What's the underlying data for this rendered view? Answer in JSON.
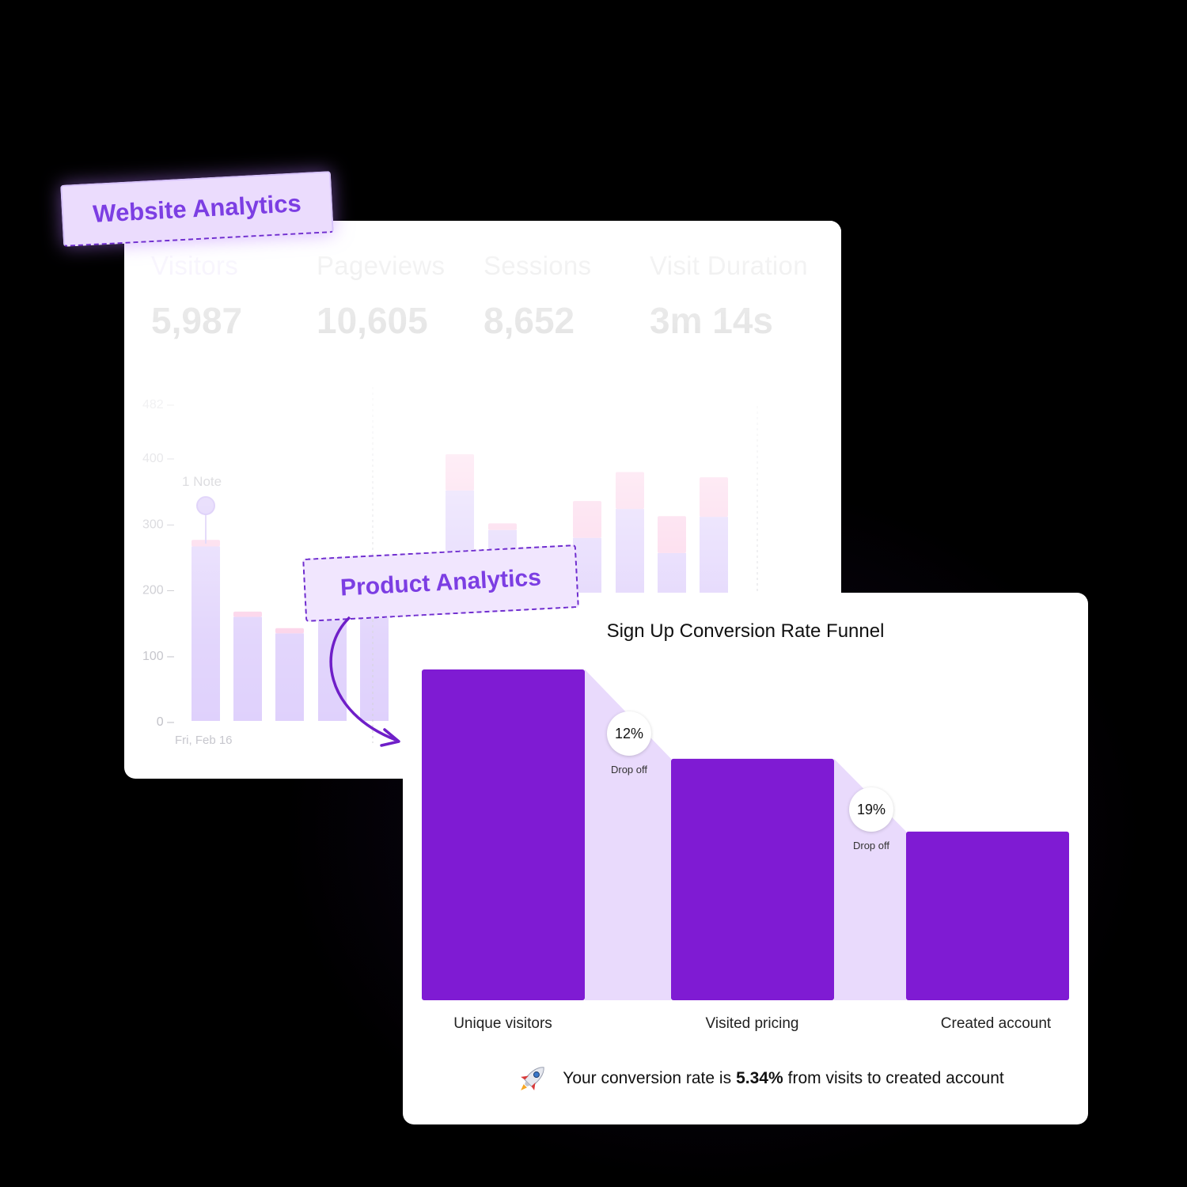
{
  "website_analytics": {
    "tag_label": "Website Analytics",
    "metrics": [
      {
        "label": "Visitors",
        "value": "5,987"
      },
      {
        "label": "Pageviews",
        "value": "10,605"
      },
      {
        "label": "Sessions",
        "value": "8,652"
      },
      {
        "label": "Visit Duration",
        "value": "3m 14s"
      }
    ],
    "active_metric": "Visitors",
    "chart_data": {
      "type": "bar",
      "y_ticks": [
        "0",
        "100",
        "200",
        "300",
        "400",
        "482"
      ],
      "ylim": [
        0,
        482
      ],
      "x_tick_label": "Fri, Feb 16",
      "note_label": "1 Note",
      "series": [
        {
          "values": [
            265,
            158,
            133,
            170,
            170,
            0,
            350,
            290,
            0,
            278,
            322,
            255,
            310
          ]
        },
        {
          "values": [
            10,
            8,
            8,
            0,
            0,
            0,
            55,
            10,
            0,
            56,
            56,
            56,
            60
          ]
        }
      ],
      "colors": {
        "primary": "#d9c8fb",
        "secondary": "#fbc7e3"
      }
    }
  },
  "product_analytics": {
    "tag_label": "Product Analytics"
  },
  "funnel": {
    "title": "Sign Up Conversion Rate Funnel",
    "chart_data": {
      "type": "bar",
      "categories": [
        "Unique visitors",
        "Visited pricing",
        "Created account"
      ],
      "values": [
        100,
        73,
        51
      ],
      "drop_offs": [
        {
          "value": "12%",
          "caption": "Drop off"
        },
        {
          "value": "19%",
          "caption": "Drop off"
        }
      ],
      "colors": {
        "bar": "#7f1bd3",
        "connector": "#e9dafc"
      }
    },
    "summary_prefix": "Your conversion rate is",
    "summary_value": "5.34%",
    "summary_suffix": "from visits to created account",
    "icon": "rocket-icon"
  }
}
